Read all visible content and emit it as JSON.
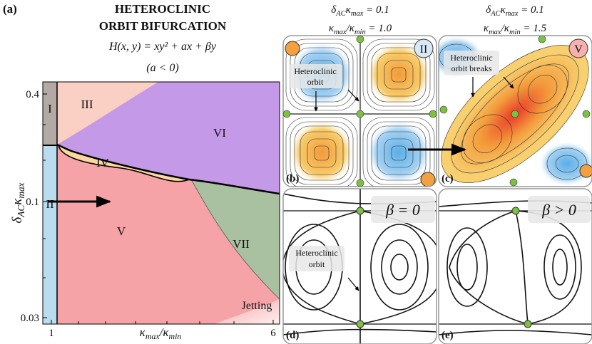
{
  "panel_a": {
    "label": "(a)",
    "title_lines": [
      "HETEROCLINIC",
      "ORBIT BIFURCATION"
    ],
    "formula": "H(x, y) = xy² + ax + βy",
    "condition": "(a < 0)",
    "y_axis_label": [
      "δ",
      "AC",
      "κ",
      "max"
    ],
    "y_ticks": [
      "0.4",
      "0.1",
      "0.03"
    ],
    "x_ticks": [
      "1",
      "6"
    ],
    "x_axis_label": [
      "κ",
      "max",
      "/κ",
      "min"
    ],
    "regions": [
      "I",
      "II",
      "III",
      "IV",
      "V",
      "VI",
      "VII",
      "Jetting"
    ]
  },
  "panel_b": {
    "label": "(b)",
    "header_1": [
      "δ",
      "AC",
      "κ",
      "max",
      " = 0.1"
    ],
    "header_2": [
      "κ",
      "max",
      "/κ",
      "min",
      " = 1.0"
    ],
    "badge": "II",
    "annotation": [
      "Heteroclinic",
      "orbit"
    ]
  },
  "panel_c": {
    "label": "(c)",
    "header_1": [
      "δ",
      "AC",
      "κ",
      "max",
      " = 0.1"
    ],
    "header_2": [
      "κ",
      "max",
      "/κ",
      "min",
      " = 1.5"
    ],
    "badge": "V",
    "annotation": [
      "Heteroclinic",
      "orbit breaks"
    ]
  },
  "panel_d": {
    "label": "(d)",
    "beta_label": "β = 0",
    "annotation": [
      "Heteroclinic",
      "orbit"
    ]
  },
  "panel_e": {
    "label": "(e)",
    "beta_label": "β > 0"
  }
}
